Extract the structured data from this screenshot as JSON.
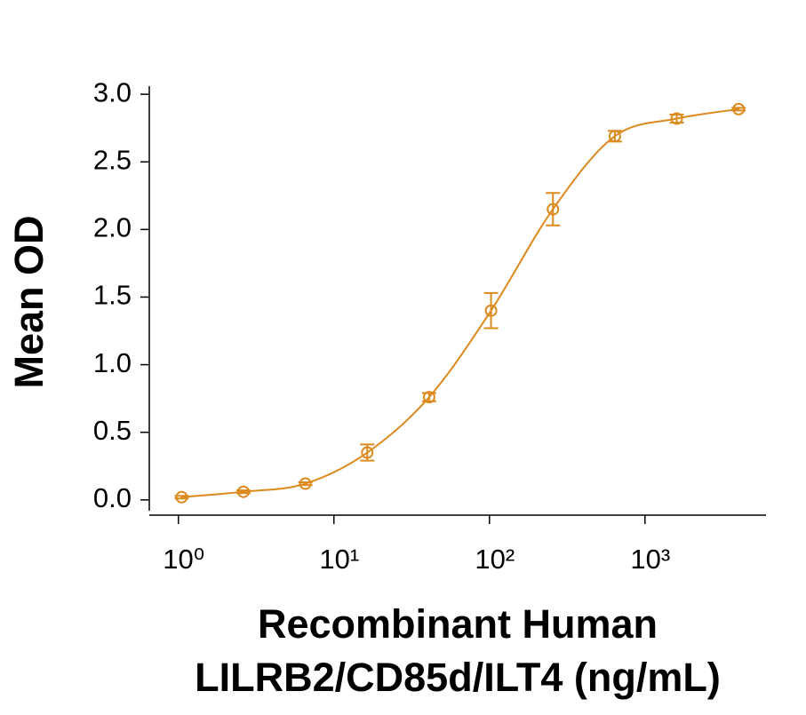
{
  "chart_data": {
    "type": "scatter",
    "ylabel": "Mean OD",
    "xlabel": [
      "Recombinant Human",
      "LILRB2/CD85d/ILT4 (ng/mL)"
    ],
    "x_scale": "log",
    "color": "#dc8a1e",
    "xlim": [
      0.65,
      6000
    ],
    "ylim": [
      -0.08,
      3.06
    ],
    "xticks": [
      {
        "value": 1,
        "label": "10⁰"
      },
      {
        "value": 10,
        "label": "10¹"
      },
      {
        "value": 100,
        "label": "10²"
      },
      {
        "value": 1000,
        "label": "10³"
      }
    ],
    "yticks": [
      {
        "value": 0,
        "label": "0.0"
      },
      0.5,
      {
        "value": 1,
        "label": "1.0"
      },
      1.5,
      {
        "value": 2,
        "label": "2.0"
      },
      2.5,
      {
        "value": 3,
        "label": "3.0"
      }
    ],
    "x": [
      1.05,
      2.62,
      6.55,
      16.38,
      40.96,
      102.4,
      256,
      640,
      1600,
      4000
    ],
    "values": [
      0.02,
      0.06,
      0.12,
      0.35,
      0.76,
      1.4,
      2.15,
      2.69,
      2.82,
      2.89
    ],
    "errors": [
      0.01,
      0.01,
      0.01,
      0.06,
      0.03,
      0.13,
      0.12,
      0.04,
      0.03,
      0.01
    ]
  }
}
